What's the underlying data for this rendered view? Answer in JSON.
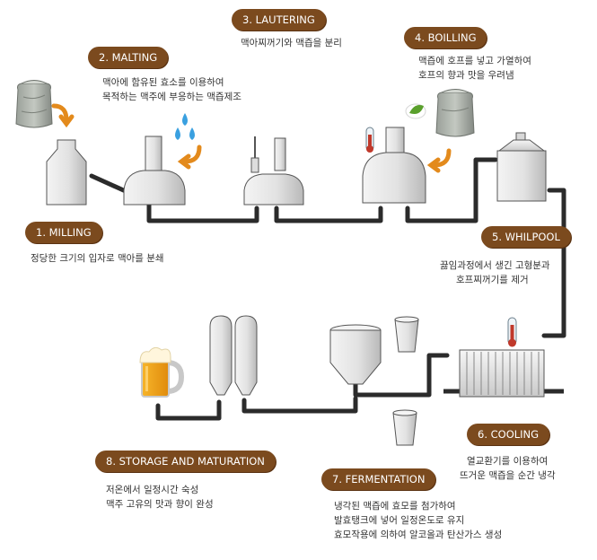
{
  "steps": {
    "milling": {
      "label": "1. MILLING",
      "desc": [
        "정당한 크기의 입자로 맥아를 분쇄"
      ]
    },
    "malting": {
      "label": "2. MALTING",
      "desc": [
        "맥아에 함유된 효소를 이용하여",
        "목적하는 맥주에 부응하는 맥즙제조"
      ]
    },
    "lautering": {
      "label": "3. LAUTERING",
      "desc": [
        "맥아찌꺼기와 맥즙을 분리"
      ]
    },
    "boiling": {
      "label": "4. BOILLING",
      "desc": [
        "맥즙에 호프를 넣고 가열하여",
        "호프의 향과 맛을 우려냄"
      ]
    },
    "whirlpool": {
      "label": "5. WHILPOOL",
      "desc": [
        "끓임과정에서 생긴 고형분과",
        "호프찌꺼기를 제거"
      ]
    },
    "cooling": {
      "label": "6. COOLING",
      "desc": [
        "열교환기를 이용하여",
        "뜨거운 맥즙을 순간 냉각"
      ]
    },
    "fermentation": {
      "label": "7. FERMENTATION",
      "desc": [
        "냉각된 맥즙에 효모를 첨가하여",
        "발효탱크에 넣어 일정온도로 유지",
        "효모작용에 의하여 알코올과 탄산가스 생성"
      ]
    },
    "storage": {
      "label": "8. STORAGE AND MATURATION",
      "desc": [
        "저온에서 일정시간 숙성",
        "맥주 고유의 맛과 향이 완성"
      ]
    }
  },
  "colors": {
    "label_bg": "#7b4a1e",
    "pipe": "#2b2b2b",
    "arrow": "#e38a1c",
    "water": "#3aa0e0",
    "thermometer": "#c0392b",
    "beer": "#f2a516"
  },
  "icons": [
    "malt-sack-icon",
    "hop-sack-icon",
    "water-drops-icon",
    "thermometer-icon",
    "beer-mug-icon"
  ]
}
